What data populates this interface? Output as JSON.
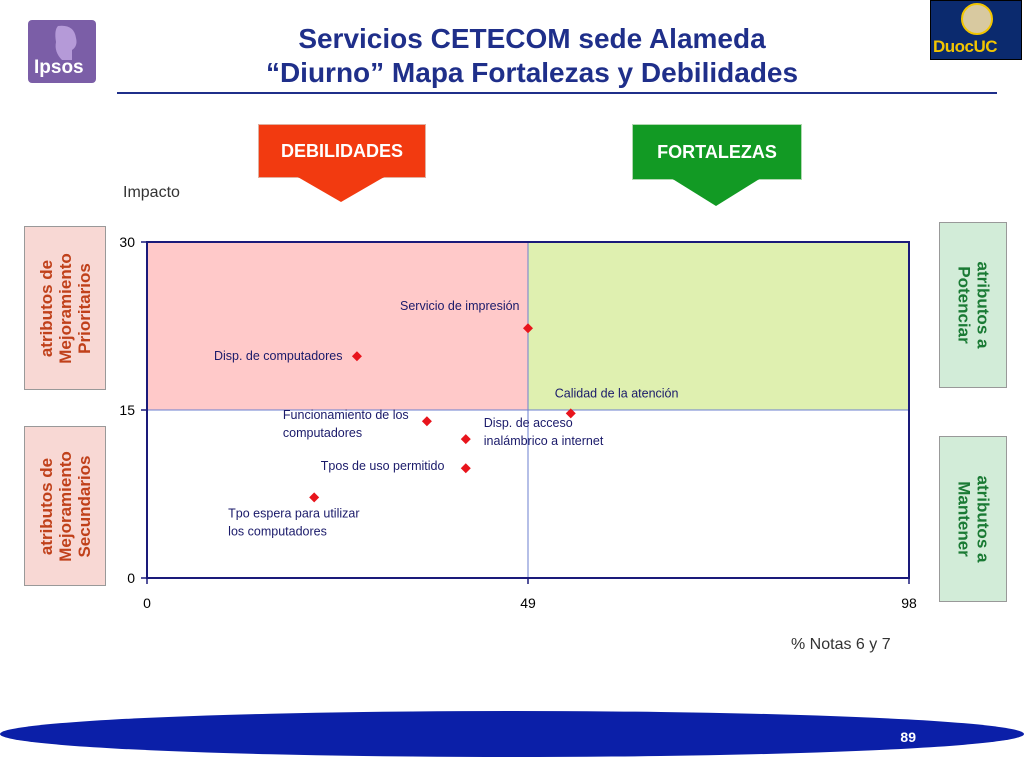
{
  "header": {
    "title_line1": "Servicios CETECOM sede Alameda",
    "title_line2": "“Diurno” Mapa Fortalezas y Debilidades",
    "logo_left": "Ipsos",
    "logo_right": "DuocUC"
  },
  "tags": {
    "debilidades": "DEBILIDADES",
    "fortalezas": "FORTALEZAS"
  },
  "side_labels": {
    "left_top": [
      "atributos de",
      "Mejoramiento",
      "Prioritarios"
    ],
    "left_bottom": [
      "atributos de",
      "Mejoramiento",
      "Secundarios"
    ],
    "right_top": [
      "atributos a",
      "Potenciar"
    ],
    "right_bottom": [
      "atributos a",
      "Mantener"
    ]
  },
  "colors": {
    "title": "#1f2f8a",
    "debilidades": "#f23a10",
    "fortalezas": "#129a24",
    "quadrant_pink": "#ffc9c9",
    "quadrant_green": "#dff0b0",
    "marker": "#e8141c",
    "footer_band": "#0b1fa8"
  },
  "chart_data": {
    "type": "scatter",
    "xlabel": "% Notas 6 y 7",
    "ylabel": "Impacto",
    "xlim": [
      0,
      98
    ],
    "ylim": [
      0,
      30
    ],
    "x_ticks": [
      "0",
      "49",
      "98"
    ],
    "y_ticks": [
      "0",
      "15",
      "30"
    ],
    "x_divider": 49,
    "y_divider": 15,
    "points": [
      {
        "label": "Servicio de impresión",
        "x": 49,
        "y": 22.3
      },
      {
        "label": "Disp. de computadores",
        "x": 27,
        "y": 19.8
      },
      {
        "label": "Calidad de la atención",
        "x": 54.5,
        "y": 14.7
      },
      {
        "label": "Funcionamiento de los computadores",
        "x": 36,
        "y": 14.0
      },
      {
        "label": "Disp. de acceso inalámbrico a internet",
        "x": 41,
        "y": 12.4
      },
      {
        "label": "Tpos de uso permitido",
        "x": 41,
        "y": 9.8
      },
      {
        "label": "Tpo espera para utilizar los computadores",
        "x": 21.5,
        "y": 7.2
      }
    ]
  },
  "footer": {
    "page_number": "89"
  }
}
